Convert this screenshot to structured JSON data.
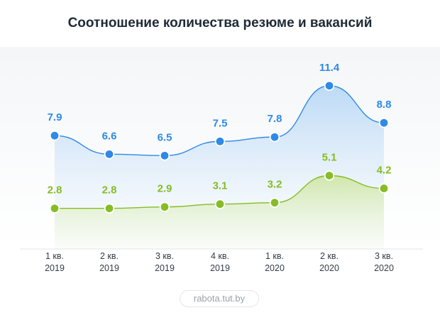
{
  "chart_data": {
    "type": "area",
    "title": "Соотношение количества резюме и вакансий",
    "categories": [
      {
        "q": "1 кв.",
        "y": "2019"
      },
      {
        "q": "2 кв.",
        "y": "2019"
      },
      {
        "q": "3 кв.",
        "y": "2019"
      },
      {
        "q": "4 кв.",
        "y": "2019"
      },
      {
        "q": "1 кв.",
        "y": "2020"
      },
      {
        "q": "2 кв.",
        "y": "2020"
      },
      {
        "q": "3 кв.",
        "y": "2020"
      }
    ],
    "series": [
      {
        "values": [
          7.9,
          6.6,
          6.5,
          7.5,
          7.8,
          11.4,
          8.8
        ],
        "labels": [
          "7.9",
          "6.6",
          "6.5",
          "7.5",
          "7.8",
          "11.4",
          "8.8"
        ],
        "color": "#2e8ae6"
      },
      {
        "values": [
          2.8,
          2.8,
          2.9,
          3.1,
          3.2,
          5.1,
          4.2
        ],
        "labels": [
          "2.8",
          "2.8",
          "2.9",
          "3.1",
          "3.2",
          "5.1",
          "4.2"
        ],
        "color": "#86bc25"
      }
    ],
    "grid": false,
    "legend": "none"
  },
  "source": "rabota.tut.by"
}
